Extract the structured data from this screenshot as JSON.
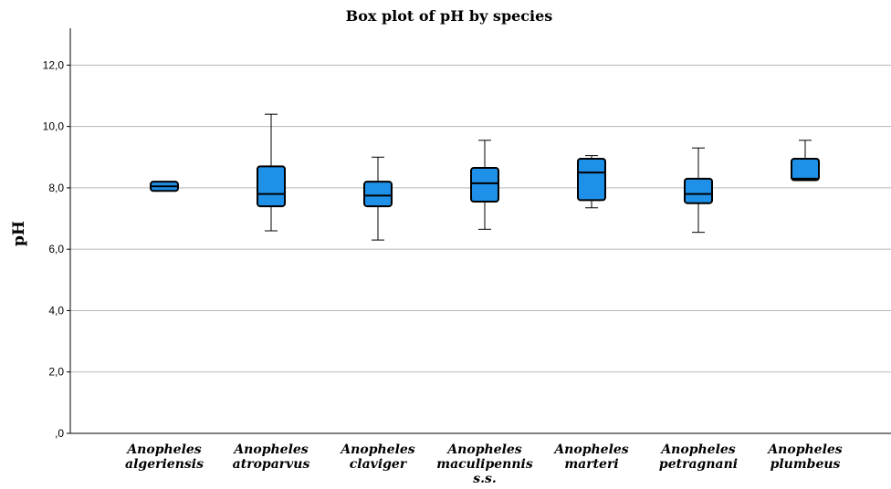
{
  "chart_data": {
    "type": "box",
    "title": "Box plot of pH by species",
    "xlabel": "",
    "ylabel": "pH",
    "ylim": [
      0,
      13.2
    ],
    "yticks": [
      0,
      2,
      4,
      6,
      8,
      10,
      12
    ],
    "ytick_labels": [
      ",0",
      "2,0",
      "4,0",
      "6,0",
      "8,0",
      "10,0",
      "12,0"
    ],
    "grid": true,
    "box_color": "#1e90e8",
    "categories": [
      [
        "Anopheles",
        "algeriensis"
      ],
      [
        "Anopheles",
        "atroparvus"
      ],
      [
        "Anopheles",
        "claviger"
      ],
      [
        "Anopheles",
        "maculipennis",
        "s.s."
      ],
      [
        "Anopheles",
        "marteri"
      ],
      [
        "Anopheles",
        "petragnani"
      ],
      [
        "Anopheles",
        "plumbeus"
      ]
    ],
    "boxes": [
      {
        "min": 7.9,
        "q1": 7.9,
        "median": 8.05,
        "q3": 8.2,
        "max": 8.2
      },
      {
        "min": 6.6,
        "q1": 7.4,
        "median": 7.8,
        "q3": 8.7,
        "max": 10.4
      },
      {
        "min": 6.3,
        "q1": 7.4,
        "median": 7.75,
        "q3": 8.2,
        "max": 9.0
      },
      {
        "min": 6.65,
        "q1": 7.55,
        "median": 8.15,
        "q3": 8.65,
        "max": 9.55
      },
      {
        "min": 7.35,
        "q1": 7.6,
        "median": 8.5,
        "q3": 8.95,
        "max": 9.05
      },
      {
        "min": 6.55,
        "q1": 7.5,
        "median": 7.8,
        "q3": 8.3,
        "max": 9.3
      },
      {
        "min": 8.25,
        "q1": 8.25,
        "median": 8.3,
        "q3": 8.95,
        "max": 9.55
      }
    ]
  }
}
